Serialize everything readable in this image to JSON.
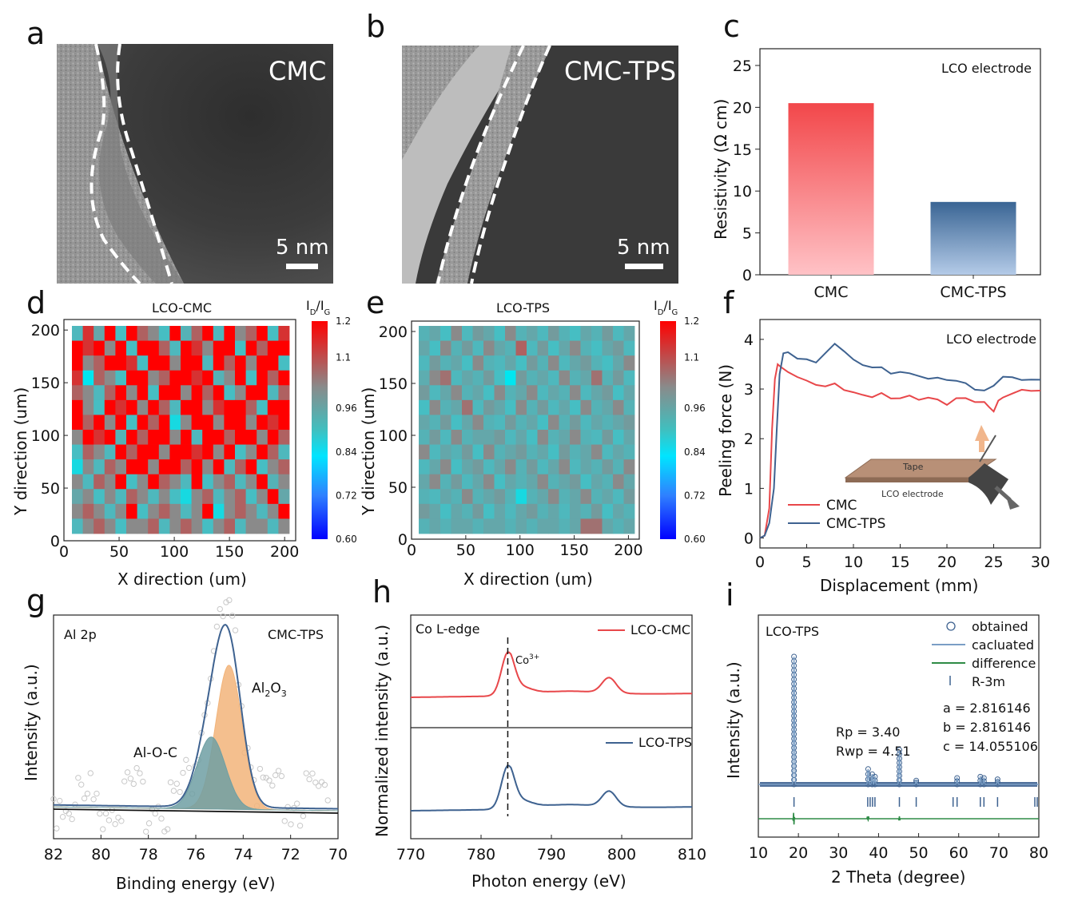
{
  "panels": {
    "a": {
      "letter": "a",
      "label": "CMC",
      "scale": "5 nm"
    },
    "b": {
      "letter": "b",
      "label": "CMC-TPS",
      "scale": "5 nm"
    },
    "c": {
      "letter": "c"
    },
    "d": {
      "letter": "d"
    },
    "e": {
      "letter": "e"
    },
    "f": {
      "letter": "f"
    },
    "g": {
      "letter": "g"
    },
    "h": {
      "letter": "h"
    },
    "i": {
      "letter": "i"
    }
  },
  "colors": {
    "red": "#e8474a",
    "blue": "#3e6290",
    "orange": "#f2b47a",
    "teal": "#6f9fa3",
    "green": "#2e8b46",
    "grey": "#8a8a8a"
  },
  "chart_data": [
    {
      "id": "c",
      "type": "bar",
      "title": "LCO electrode",
      "categories": [
        "CMC",
        "CMC-TPS"
      ],
      "values": [
        20.5,
        8.7
      ],
      "ylabel": "Resistivity (Ω cm)",
      "ylim": [
        0,
        27
      ],
      "yticks": [
        "0",
        "5",
        "10",
        "15",
        "20",
        "25"
      ]
    },
    {
      "id": "d",
      "type": "heatmap",
      "title": "LCO-CMC",
      "xlabel": "X direction (um)",
      "ylabel": "Y direction (um)",
      "xticks": [
        "0",
        "50",
        "100",
        "150",
        "200"
      ],
      "yticks": [
        "0",
        "50",
        "100",
        "150",
        "200"
      ],
      "colorbar_label": "I_D/I_G",
      "colorbar_ticks": [
        "1.2",
        "1.1",
        "0.96",
        "0.84",
        "0.72",
        "0.60"
      ],
      "grid": [
        [
          0.97,
          1.15,
          1.0,
          1.2,
          0.96,
          1.2,
          1.1,
          1.05,
          0.96,
          1.2,
          0.98,
          1.1,
          1.2,
          0.97,
          1.2,
          1.05,
          1.1,
          1.2,
          0.96,
          1.15
        ],
        [
          1.2,
          1.15,
          1.2,
          1.05,
          1.2,
          0.96,
          1.2,
          1.2,
          1.1,
          0.97,
          1.2,
          1.15,
          1.05,
          1.2,
          1.2,
          0.96,
          1.2,
          1.1,
          1.2,
          1.2
        ],
        [
          1.2,
          1.05,
          1.1,
          1.2,
          1.2,
          1.15,
          0.96,
          1.2,
          1.2,
          1.05,
          1.2,
          1.2,
          0.97,
          1.2,
          1.1,
          1.2,
          1.05,
          1.2,
          1.2,
          0.96
        ],
        [
          1.15,
          0.9,
          1.1,
          1.05,
          0.96,
          1.2,
          1.2,
          1.05,
          1.1,
          1.2,
          1.2,
          1.15,
          1.2,
          0.98,
          1.05,
          1.2,
          0.96,
          1.2,
          1.1,
          1.2
        ],
        [
          1.1,
          1.05,
          0.97,
          1.1,
          1.2,
          1.05,
          1.2,
          0.96,
          1.2,
          1.2,
          1.05,
          1.2,
          1.1,
          1.2,
          0.96,
          1.05,
          1.2,
          1.2,
          0.97,
          1.1
        ],
        [
          1.2,
          1.05,
          0.96,
          1.2,
          1.15,
          1.2,
          1.05,
          1.2,
          1.1,
          0.97,
          1.2,
          1.2,
          1.05,
          1.15,
          1.2,
          1.2,
          1.1,
          0.96,
          1.2,
          1.2
        ],
        [
          1.2,
          1.1,
          1.2,
          1.05,
          1.2,
          0.96,
          1.2,
          1.1,
          1.2,
          0.92,
          1.05,
          1.2,
          1.2,
          1.05,
          1.2,
          1.2,
          1.05,
          1.2,
          1.15,
          1.2
        ],
        [
          1.05,
          1.2,
          1.15,
          1.2,
          0.98,
          1.2,
          1.1,
          1.2,
          1.2,
          1.05,
          1.2,
          0.97,
          1.2,
          1.2,
          1.1,
          1.2,
          1.2,
          1.05,
          1.2,
          1.1
        ],
        [
          0.96,
          1.1,
          1.05,
          0.97,
          1.2,
          1.1,
          1.2,
          1.2,
          1.05,
          1.2,
          1.2,
          1.15,
          1.2,
          1.05,
          1.2,
          0.96,
          1.05,
          1.2,
          1.1,
          0.97
        ],
        [
          0.92,
          1.05,
          0.97,
          1.1,
          1.05,
          1.2,
          1.2,
          1.05,
          1.2,
          1.2,
          1.1,
          1.2,
          1.05,
          1.2,
          0.97,
          1.1,
          1.2,
          0.96,
          1.05,
          1.1
        ],
        [
          1.05,
          0.97,
          1.1,
          1.05,
          1.2,
          0.96,
          1.05,
          1.2,
          1.1,
          1.05,
          0.97,
          1.2,
          0.96,
          1.05,
          1.1,
          0.97,
          1.05,
          1.2,
          0.98,
          1.05
        ],
        [
          1.0,
          1.05,
          0.96,
          1.05,
          0.97,
          1.1,
          1.05,
          0.97,
          1.05,
          0.96,
          0.92,
          1.05,
          1.1,
          0.97,
          1.05,
          1.1,
          0.96,
          1.05,
          1.2,
          1.0
        ],
        [
          1.05,
          1.1,
          1.05,
          0.97,
          1.05,
          1.2,
          0.96,
          1.05,
          1.1,
          1.05,
          0.97,
          1.05,
          1.2,
          0.92,
          1.05,
          1.1,
          1.05,
          0.97,
          1.05,
          1.2
        ],
        [
          0.97,
          1.05,
          1.1,
          1.05,
          0.96,
          1.05,
          1.05,
          1.1,
          0.97,
          1.05,
          1.1,
          1.05,
          0.96,
          1.05,
          1.1,
          0.97,
          1.05,
          1.05,
          0.97,
          1.05
        ]
      ]
    },
    {
      "id": "e",
      "type": "heatmap",
      "title": "LCO-TPS",
      "xlabel": "X direction (um)",
      "ylabel": "Y direction (um)",
      "xticks": [
        "0",
        "50",
        "100",
        "150",
        "200"
      ],
      "yticks": [
        "0",
        "50",
        "100",
        "150",
        "200"
      ],
      "colorbar_label": "I_D/I_G",
      "colorbar_ticks": [
        "1.2",
        "1.1",
        "0.96",
        "0.84",
        "0.72",
        "0.60"
      ],
      "grid": [
        [
          0.98,
          1.0,
          0.96,
          1.05,
          0.97,
          1.02,
          1.0,
          0.96,
          1.05,
          0.98,
          1.0,
          0.97,
          1.02,
          0.98,
          0.96,
          1.0,
          0.98,
          1.02,
          0.97,
          1.0
        ],
        [
          1.0,
          0.96,
          1.05,
          0.98,
          1.02,
          0.97,
          1.05,
          1.0,
          0.98,
          1.1,
          0.97,
          1.02,
          0.96,
          1.0,
          1.05,
          0.98,
          0.96,
          1.0,
          1.02,
          0.97
        ],
        [
          0.97,
          1.02,
          0.98,
          1.0,
          0.96,
          1.05,
          0.98,
          0.97,
          1.0,
          0.96,
          1.02,
          0.98,
          1.05,
          0.97,
          1.0,
          1.02,
          0.98,
          0.96,
          1.0,
          1.05
        ],
        [
          0.99,
          1.05,
          1.08,
          0.97,
          1.0,
          0.98,
          1.02,
          0.96,
          0.9,
          1.02,
          0.98,
          1.0,
          0.97,
          1.05,
          0.98,
          1.0,
          1.08,
          0.98,
          1.02,
          0.97
        ],
        [
          1.02,
          0.97,
          1.0,
          1.05,
          0.98,
          1.0,
          0.96,
          1.05,
          0.98,
          1.0,
          1.05,
          0.97,
          1.0,
          0.98,
          1.05,
          0.97,
          1.0,
          1.02,
          0.96,
          1.0
        ],
        [
          0.96,
          1.05,
          0.98,
          1.0,
          1.08,
          0.97,
          1.02,
          1.0,
          0.96,
          1.05,
          0.98,
          1.02,
          0.97,
          1.0,
          0.96,
          1.05,
          0.98,
          1.0,
          1.05,
          0.98
        ],
        [
          1.0,
          0.98,
          1.02,
          0.96,
          1.0,
          1.05,
          0.98,
          0.97,
          1.02,
          0.98,
          1.0,
          0.96,
          1.05,
          0.98,
          1.02,
          0.97,
          1.0,
          0.98,
          1.0,
          1.02
        ],
        [
          0.98,
          1.02,
          0.97,
          1.05,
          0.98,
          1.0,
          1.0,
          1.02,
          0.97,
          1.0,
          0.96,
          1.05,
          0.98,
          1.0,
          1.05,
          0.98,
          0.97,
          1.02,
          0.96,
          1.0
        ],
        [
          1.05,
          0.97,
          1.0,
          0.98,
          1.02,
          0.96,
          1.05,
          0.98,
          1.0,
          1.02,
          0.98,
          1.0,
          0.96,
          1.02,
          0.98,
          1.0,
          1.05,
          0.97,
          1.0,
          0.98
        ],
        [
          0.97,
          1.0,
          1.05,
          0.96,
          1.0,
          1.02,
          0.97,
          1.0,
          1.05,
          0.98,
          1.02,
          0.97,
          1.0,
          1.05,
          0.97,
          1.0,
          0.98,
          1.02,
          0.98,
          1.05
        ],
        [
          1.0,
          1.05,
          0.98,
          1.02,
          0.97,
          1.0,
          1.05,
          0.96,
          1.0,
          0.98,
          1.0,
          1.05,
          0.98,
          1.0,
          1.02,
          0.96,
          1.0,
          0.98,
          1.05,
          1.0
        ],
        [
          0.98,
          0.97,
          1.0,
          0.98,
          1.05,
          0.98,
          1.0,
          1.02,
          0.98,
          0.92,
          0.98,
          1.0,
          1.05,
          0.98,
          1.0,
          1.05,
          0.98,
          1.0,
          0.97,
          1.02
        ],
        [
          1.02,
          1.0,
          0.96,
          1.0,
          0.98,
          1.02,
          0.96,
          1.0,
          0.97,
          1.0,
          1.02,
          0.98,
          1.0,
          0.97,
          1.0,
          0.98,
          1.02,
          0.96,
          1.0,
          0.98
        ],
        [
          0.98,
          1.0,
          0.98,
          1.0,
          1.0,
          0.98,
          1.0,
          1.0,
          0.98,
          1.0,
          0.98,
          1.0,
          1.0,
          0.98,
          1.0,
          1.08,
          1.08,
          1.0,
          0.98,
          1.0
        ]
      ]
    },
    {
      "id": "f",
      "type": "line",
      "title": "LCO electrode",
      "xlabel": "Displacement (mm)",
      "ylabel": "Peeling force (N)",
      "xlim": [
        0,
        30
      ],
      "ylim": [
        -0.2,
        4.4
      ],
      "xticks": [
        "0",
        "5",
        "10",
        "15",
        "20",
        "25",
        "30"
      ],
      "yticks": [
        "0",
        "1",
        "2",
        "3",
        "4"
      ],
      "inset_labels": {
        "tape": "Tape",
        "electrode": "LCO electrode"
      },
      "series": [
        {
          "name": "CMC",
          "color": "red",
          "x": [
            0,
            0.5,
            1,
            1.3,
            1.6,
            1.9,
            2.2,
            3,
            4,
            5,
            6,
            7,
            8,
            9,
            10,
            11,
            12,
            13,
            14,
            15,
            16,
            17,
            18,
            19,
            20,
            21,
            22,
            23,
            24,
            24.5,
            25,
            25.5,
            26,
            27,
            28,
            29,
            30
          ],
          "y": [
            0,
            0.05,
            0.6,
            2.2,
            3.2,
            3.5,
            3.45,
            3.35,
            3.25,
            3.15,
            3.1,
            3.05,
            3.1,
            3.0,
            2.92,
            2.88,
            2.85,
            2.9,
            2.82,
            2.82,
            2.85,
            2.8,
            2.82,
            2.78,
            2.7,
            2.8,
            2.82,
            2.75,
            2.72,
            2.65,
            2.55,
            2.75,
            2.85,
            2.9,
            2.98,
            2.98,
            2.95
          ]
        },
        {
          "name": "CMC-TPS",
          "color": "blue",
          "x": [
            0,
            0.5,
            1,
            1.5,
            1.8,
            2.1,
            2.5,
            3,
            4,
            5,
            6,
            7,
            8,
            9,
            10,
            11,
            12,
            13,
            14,
            15,
            16,
            17,
            18,
            19,
            20,
            21,
            22,
            23,
            24,
            25,
            26,
            27,
            28,
            29,
            30
          ],
          "y": [
            0,
            0.05,
            0.3,
            1.0,
            2.2,
            3.3,
            3.72,
            3.75,
            3.62,
            3.58,
            3.55,
            3.72,
            3.9,
            3.78,
            3.58,
            3.48,
            3.45,
            3.42,
            3.32,
            3.35,
            3.3,
            3.28,
            3.2,
            3.22,
            3.2,
            3.15,
            3.12,
            3.0,
            2.95,
            3.08,
            3.25,
            3.22,
            3.2,
            3.18,
            3.18
          ]
        }
      ]
    },
    {
      "id": "g",
      "type": "line",
      "title": "CMC-TPS",
      "corner_label": "Al 2p",
      "xlabel": "Binding energy (eV)",
      "ylabel": "Intensity (a.u.)",
      "xlim": [
        82,
        70
      ],
      "xticks": [
        "82",
        "80",
        "78",
        "76",
        "74",
        "72",
        "70"
      ],
      "annotations": {
        "alo": "Al-O-C",
        "al2o3_main": "Al",
        "al2o3_s1": "2",
        "al2o3_mid": "O",
        "al2o3_s2": "3"
      },
      "peaks": [
        {
          "name": "Al2O3",
          "center": 74.6,
          "height": 0.88,
          "width": 0.55,
          "color": "orange"
        },
        {
          "name": "Al-O-C",
          "center": 75.35,
          "height": 0.44,
          "width": 0.6,
          "color": "teal"
        }
      ]
    },
    {
      "id": "h",
      "type": "line",
      "title": "Co L-edge",
      "xlabel": "Photon energy (eV)",
      "ylabel": "Normalized intensity (a.u.)",
      "xlim": [
        770,
        810
      ],
      "xticks": [
        "770",
        "780",
        "790",
        "800",
        "810"
      ],
      "annotations": {
        "co": "Co",
        "co_sup": "3+"
      },
      "series": [
        {
          "name": "LCO-CMC",
          "color": "red",
          "peaks": [
            [
              783.8,
              1.0
            ],
            [
              798.2,
              0.38
            ]
          ]
        },
        {
          "name": "LCO-TPS",
          "color": "blue",
          "peaks": [
            [
              783.8,
              1.0
            ],
            [
              798.2,
              0.38
            ]
          ]
        }
      ]
    },
    {
      "id": "i",
      "type": "scatter",
      "title": "LCO-TPS",
      "xlabel": "2 Theta (degree)",
      "ylabel": "Intensity (a.u.)",
      "xlim": [
        10,
        80
      ],
      "xticks": [
        "10",
        "20",
        "30",
        "40",
        "50",
        "60",
        "70",
        "80"
      ],
      "legend": [
        "obtained",
        "cacluated",
        "difference",
        "R-3m"
      ],
      "fit": {
        "rp": "Rp = 3.40",
        "rwp": "Rwp = 4.51"
      },
      "lattice": {
        "a": "a = 2.816146",
        "b": "b = 2.816146",
        "c": "c = 14.055106"
      },
      "peaks": [
        [
          18.9,
          1.0
        ],
        [
          37.4,
          0.12
        ],
        [
          38.4,
          0.08
        ],
        [
          39.1,
          0.06
        ],
        [
          45.2,
          0.27
        ],
        [
          49.4,
          0.03
        ],
        [
          59.6,
          0.05
        ],
        [
          65.4,
          0.06
        ],
        [
          66.3,
          0.05
        ],
        [
          69.7,
          0.04
        ]
      ],
      "ticks_2theta": [
        18.9,
        37.3,
        37.9,
        38.5,
        39.1,
        45.2,
        49.4,
        58.6,
        59.6,
        65.4,
        66.3,
        69.7,
        79.0,
        79.6
      ]
    }
  ]
}
